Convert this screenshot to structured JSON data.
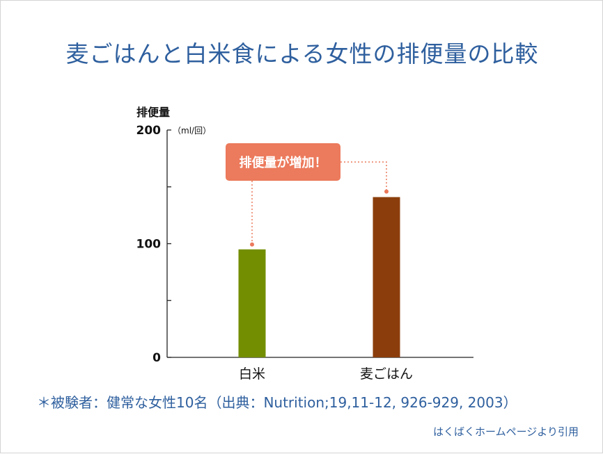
{
  "title": "麦ごはんと白米食による女性の排便量の比較",
  "chart_data": {
    "type": "bar",
    "title": "",
    "ylabel": "排便量",
    "yunit": "（ml/回）",
    "ylim": [
      0,
      200
    ],
    "yticks": [
      0,
      100,
      200
    ],
    "categories": [
      "白米",
      "麦ごはん"
    ],
    "values": [
      95,
      141
    ],
    "colors": [
      "#738e00",
      "#8b3e0c"
    ],
    "annotation": {
      "text": "排便量が増加！",
      "color": "#ec7a5c"
    }
  },
  "footnote": "＊被験者：健常な女性10名（出典：Nutrition;19,11-12, 926-929, 2003）",
  "source": "はくばくホームページより引用"
}
